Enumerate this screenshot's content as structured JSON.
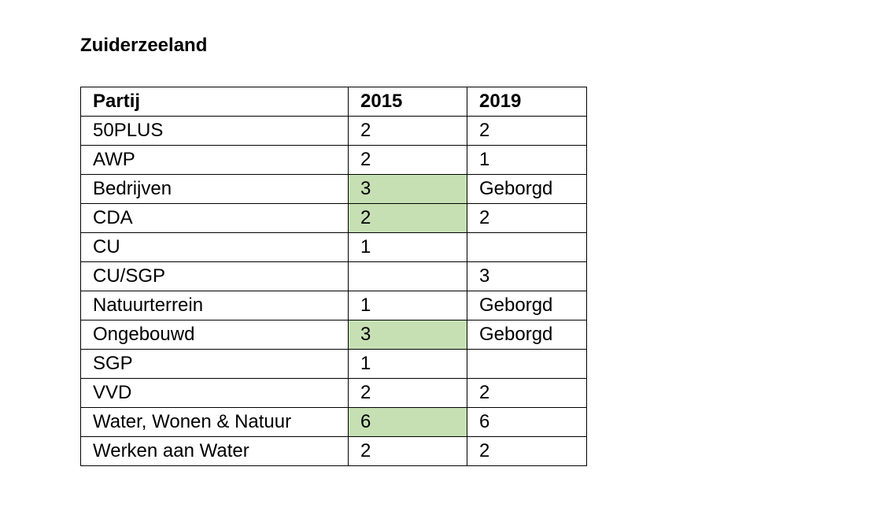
{
  "document": {
    "title": "Zuiderzeeland"
  },
  "colors": {
    "highlight": "#c6e0b4",
    "border": "#000000"
  },
  "table": {
    "headers": [
      "Partij",
      "2015",
      "2019"
    ],
    "rows": [
      {
        "party": "50PLUS",
        "y2015": "2",
        "y2019": "2",
        "highlight_2015": false
      },
      {
        "party": "AWP",
        "y2015": "2",
        "y2019": "1",
        "highlight_2015": false
      },
      {
        "party": "Bedrijven",
        "y2015": "3",
        "y2019": "Geborgd",
        "highlight_2015": true
      },
      {
        "party": "CDA",
        "y2015": "2",
        "y2019": "2",
        "highlight_2015": true
      },
      {
        "party": "CU",
        "y2015": "1",
        "y2019": "",
        "highlight_2015": false
      },
      {
        "party": "CU/SGP",
        "y2015": "",
        "y2019": "3",
        "highlight_2015": false
      },
      {
        "party": "Natuurterrein",
        "y2015": "1",
        "y2019": "Geborgd",
        "highlight_2015": false
      },
      {
        "party": "Ongebouwd",
        "y2015": "3",
        "y2019": "Geborgd",
        "highlight_2015": true
      },
      {
        "party": "SGP",
        "y2015": "1",
        "y2019": "",
        "highlight_2015": false
      },
      {
        "party": "VVD",
        "y2015": "2",
        "y2019": "2",
        "highlight_2015": false
      },
      {
        "party": "Water, Wonen & Natuur",
        "y2015": "6",
        "y2019": "6",
        "highlight_2015": true
      },
      {
        "party": "Werken aan Water",
        "y2015": "2",
        "y2019": "2",
        "highlight_2015": false
      }
    ]
  }
}
